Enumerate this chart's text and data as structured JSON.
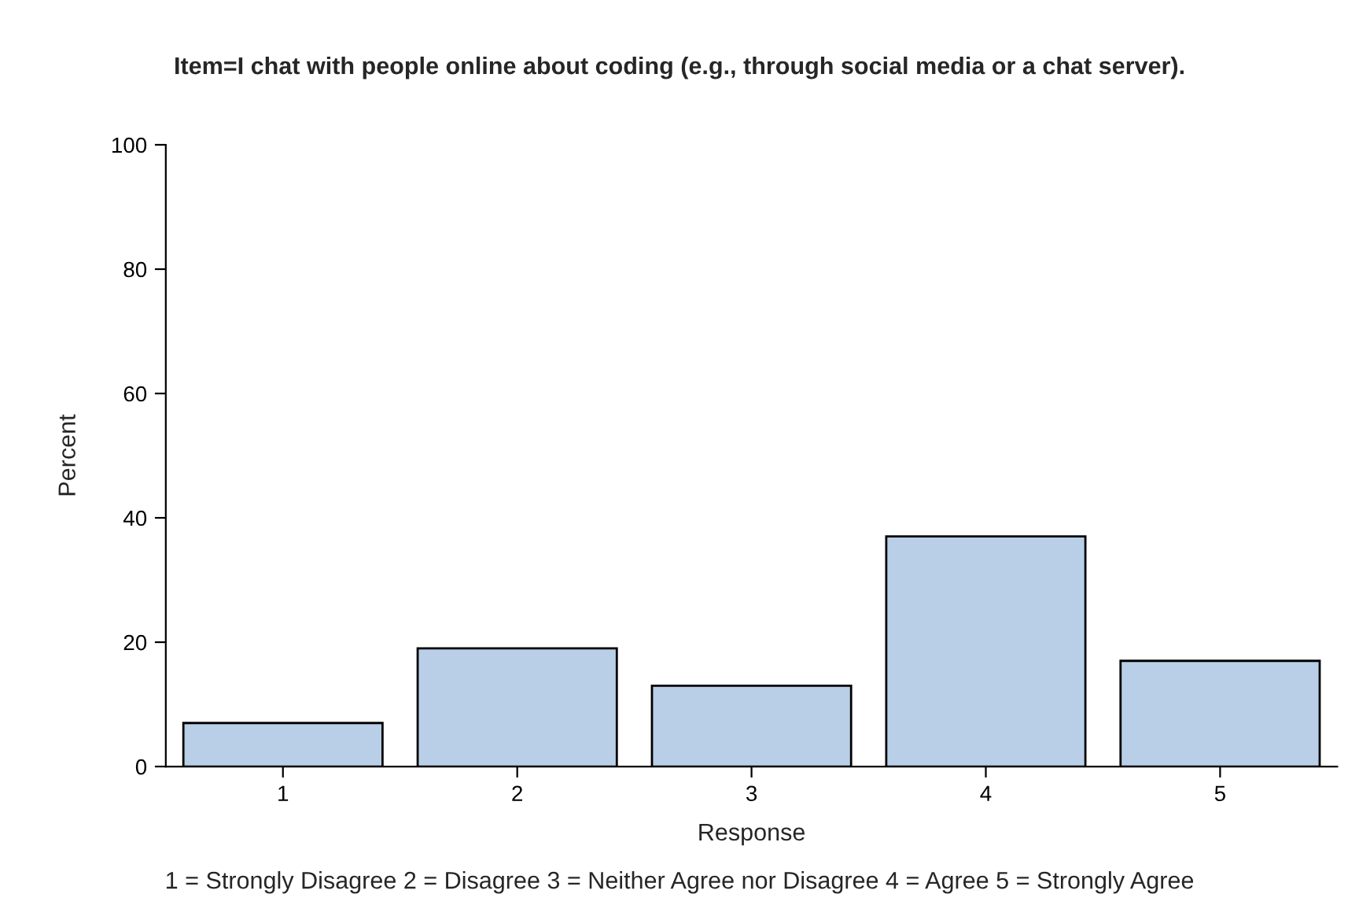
{
  "chart_data": {
    "type": "bar",
    "title": "Item=I chat with people online about coding (e.g., through social media or a chat server).",
    "xlabel": "Response",
    "ylabel": "Percent",
    "categories": [
      "1",
      "2",
      "3",
      "4",
      "5"
    ],
    "values": [
      7,
      19,
      13,
      37,
      17
    ],
    "color": "#b9cfe7",
    "ylim": [
      0,
      100
    ],
    "yticks": [
      0,
      20,
      40,
      60,
      80,
      100
    ],
    "grid": false,
    "annotations": [
      "1 = Strongly Disagree 2 = Disagree 3 = Neither Agree nor Disagree 4 = Agree 5 = Strongly Agree"
    ]
  }
}
